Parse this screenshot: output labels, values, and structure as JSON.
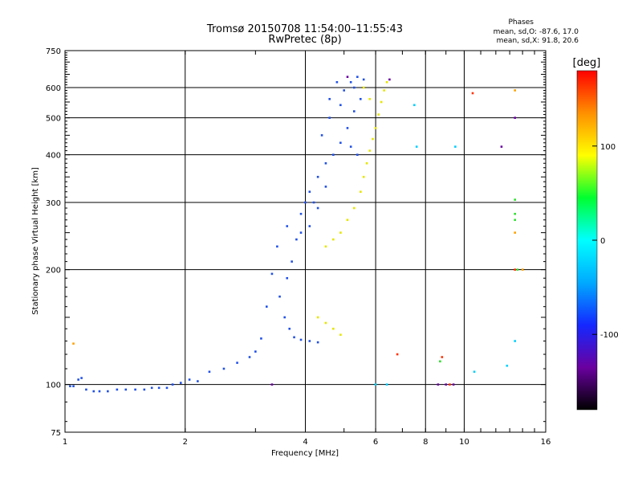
{
  "header": {
    "title_line1": "Tromsø 20150708 11:54:00–11:55:43",
    "title_line2": "RwPretec (8p)",
    "stats_title": "Phases",
    "stats_o": "mean, sd,O: -87.6, 17.0",
    "stats_x": "mean, sd,X:  91.8, 20.6"
  },
  "chart_data": {
    "type": "scatter",
    "xlabel": "Frequency [MHz]",
    "ylabel": "Stationary phase Virtual Height [km]",
    "xscale": "log",
    "yscale": "log",
    "xlim": [
      1,
      16
    ],
    "ylim": [
      75,
      750
    ],
    "xticks": [
      1,
      2,
      4,
      6,
      8,
      10,
      16
    ],
    "yticks": [
      75,
      100,
      200,
      300,
      400,
      500,
      600,
      750
    ],
    "colorbar": {
      "label": "[deg]",
      "range": [
        -180,
        180
      ],
      "ticks": [
        -100,
        0,
        100
      ],
      "colors": [
        "#000000",
        "#6a00a0",
        "#1428ff",
        "#00aaff",
        "#00ffff",
        "#00ff30",
        "#ffff00",
        "#ff9000",
        "#ff0000"
      ]
    },
    "series": [
      {
        "color": "#2050e8",
        "points": [
          [
            1.03,
            99
          ],
          [
            1.05,
            99
          ],
          [
            1.08,
            103
          ],
          [
            1.1,
            104
          ],
          [
            1.13,
            97
          ],
          [
            1.18,
            96
          ],
          [
            1.22,
            96
          ],
          [
            1.28,
            96
          ],
          [
            1.35,
            97
          ],
          [
            1.42,
            97
          ],
          [
            1.5,
            97
          ],
          [
            1.58,
            97
          ],
          [
            1.65,
            98
          ],
          [
            1.72,
            98
          ],
          [
            1.8,
            98
          ],
          [
            1.86,
            100
          ],
          [
            1.95,
            101
          ],
          [
            2.05,
            103
          ],
          [
            2.15,
            102
          ],
          [
            2.3,
            108
          ],
          [
            2.5,
            110
          ],
          [
            2.7,
            114
          ],
          [
            2.9,
            118
          ],
          [
            3.0,
            122
          ],
          [
            3.1,
            132
          ],
          [
            3.2,
            160
          ],
          [
            3.3,
            195
          ],
          [
            3.45,
            170
          ],
          [
            3.55,
            150
          ],
          [
            3.65,
            140
          ],
          [
            3.75,
            133
          ],
          [
            3.9,
            131
          ],
          [
            4.1,
            130
          ],
          [
            4.3,
            129
          ],
          [
            3.4,
            230
          ],
          [
            3.6,
            260
          ],
          [
            3.8,
            240
          ],
          [
            3.9,
            280
          ],
          [
            4.0,
            300
          ],
          [
            4.1,
            320
          ],
          [
            4.3,
            350
          ],
          [
            4.5,
            380
          ],
          [
            4.4,
            450
          ],
          [
            4.6,
            500
          ],
          [
            4.9,
            540
          ],
          [
            5.0,
            590
          ],
          [
            5.2,
            620
          ],
          [
            5.4,
            640
          ],
          [
            5.6,
            630
          ],
          [
            5.5,
            560
          ],
          [
            5.3,
            520
          ],
          [
            5.1,
            470
          ],
          [
            4.9,
            430
          ],
          [
            4.7,
            400
          ],
          [
            4.5,
            330
          ],
          [
            4.3,
            290
          ],
          [
            4.1,
            260
          ],
          [
            3.9,
            250
          ],
          [
            3.7,
            210
          ],
          [
            3.6,
            190
          ],
          [
            5.2,
            420
          ],
          [
            5.4,
            400
          ],
          [
            5.3,
            600
          ],
          [
            4.8,
            620
          ],
          [
            4.6,
            560
          ],
          [
            4.2,
            300
          ]
        ]
      },
      {
        "color": "#e6e600",
        "points": [
          [
            4.5,
            230
          ],
          [
            4.7,
            240
          ],
          [
            4.9,
            250
          ],
          [
            5.1,
            270
          ],
          [
            5.3,
            290
          ],
          [
            5.5,
            320
          ],
          [
            5.6,
            350
          ],
          [
            5.7,
            380
          ],
          [
            5.8,
            410
          ],
          [
            5.9,
            440
          ],
          [
            6.0,
            470
          ],
          [
            6.1,
            510
          ],
          [
            6.2,
            550
          ],
          [
            6.3,
            590
          ],
          [
            6.4,
            620
          ],
          [
            5.6,
            600
          ],
          [
            5.8,
            560
          ],
          [
            4.3,
            150
          ],
          [
            4.5,
            145
          ],
          [
            4.7,
            140
          ],
          [
            4.9,
            135
          ]
        ]
      },
      {
        "color": "#6a00a0",
        "points": [
          [
            3.3,
            100
          ],
          [
            5.1,
            640
          ],
          [
            6.5,
            630
          ],
          [
            8.6,
            100
          ],
          [
            9.0,
            100
          ],
          [
            9.4,
            100
          ],
          [
            13.4,
            500
          ],
          [
            12.4,
            420
          ]
        ]
      },
      {
        "color": "#ff3000",
        "points": [
          [
            9.2,
            100
          ],
          [
            6.8,
            120
          ],
          [
            8.8,
            118
          ],
          [
            10.5,
            580
          ],
          [
            13.4,
            200
          ]
        ]
      },
      {
        "color": "#00d0ff",
        "points": [
          [
            6.0,
            100
          ],
          [
            6.4,
            100
          ],
          [
            7.5,
            540
          ],
          [
            7.6,
            420
          ],
          [
            9.5,
            420
          ],
          [
            10.6,
            108
          ],
          [
            12.8,
            112
          ],
          [
            13.4,
            130
          ]
        ]
      },
      {
        "color": "#30e030",
        "points": [
          [
            8.7,
            115
          ],
          [
            13.4,
            305
          ],
          [
            13.4,
            280
          ],
          [
            13.4,
            270
          ],
          [
            13.6,
            200
          ]
        ]
      },
      {
        "color": "#ffa000",
        "points": [
          [
            1.05,
            128
          ],
          [
            13.4,
            590
          ],
          [
            14.0,
            200
          ],
          [
            13.4,
            250
          ]
        ]
      }
    ]
  }
}
